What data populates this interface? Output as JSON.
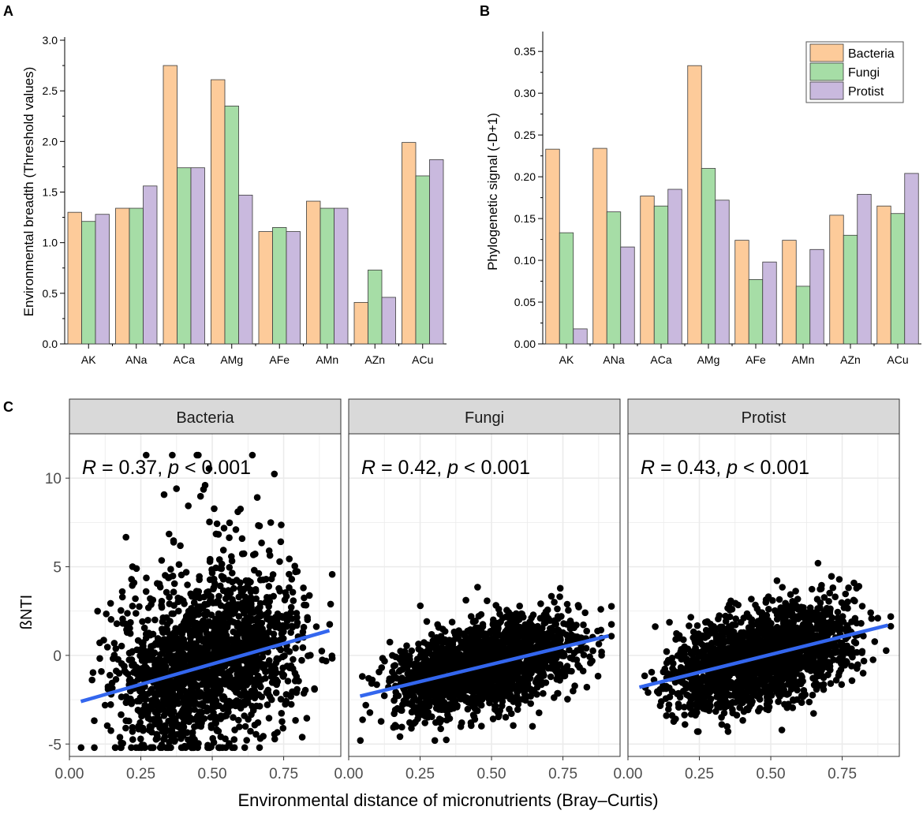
{
  "colors": {
    "bacteria": "#FDCB9A",
    "fungi": "#A6DDA6",
    "protist": "#C9B9DE",
    "bar_stroke": "#3a3a3a",
    "fit_line": "#3366EE",
    "facet_strip": "#D9D9D9",
    "grid": "#EBEBEB",
    "points": "#000000"
  },
  "chart_data": [
    {
      "panel_label": "A",
      "type": "bar",
      "title": "",
      "xlabel": "",
      "ylabel": "Environmental breadth (Threshold values)",
      "categories": [
        "AK",
        "ANa",
        "ACa",
        "AMg",
        "AFe",
        "AMn",
        "AZn",
        "ACu"
      ],
      "ylim": [
        0,
        3.0
      ],
      "yticks": [
        "0.0",
        "0.5",
        "1.0",
        "1.5",
        "2.0",
        "2.5",
        "3.0"
      ],
      "series": [
        {
          "name": "Bacteria",
          "values": [
            1.3,
            1.34,
            2.75,
            2.61,
            1.11,
            1.41,
            0.41,
            1.99
          ]
        },
        {
          "name": "Fungi",
          "values": [
            1.21,
            1.34,
            1.74,
            2.35,
            1.15,
            1.34,
            0.73,
            1.66
          ]
        },
        {
          "name": "Protist",
          "values": [
            1.28,
            1.56,
            1.74,
            1.47,
            1.11,
            1.34,
            0.46,
            1.82
          ]
        }
      ]
    },
    {
      "panel_label": "B",
      "type": "bar",
      "title": "",
      "xlabel": "",
      "ylabel": "Phylogenetic signal (-D+1)",
      "categories": [
        "AK",
        "ANa",
        "ACa",
        "AMg",
        "AFe",
        "AMn",
        "AZn",
        "ACu"
      ],
      "ylim": [
        0,
        0.37
      ],
      "yticks": [
        "0.00",
        "0.05",
        "0.10",
        "0.15",
        "0.20",
        "0.25",
        "0.30",
        "0.35"
      ],
      "legend": [
        "Bacteria",
        "Fungi",
        "Protist"
      ],
      "legend_position": "top-right",
      "series": [
        {
          "name": "Bacteria",
          "values": [
            0.233,
            0.234,
            0.177,
            0.333,
            0.124,
            0.124,
            0.154,
            0.165
          ]
        },
        {
          "name": "Fungi",
          "values": [
            0.133,
            0.158,
            0.165,
            0.21,
            0.077,
            0.069,
            0.13,
            0.156
          ]
        },
        {
          "name": "Protist",
          "values": [
            0.018,
            0.116,
            0.185,
            0.172,
            0.098,
            0.113,
            0.179,
            0.204
          ]
        }
      ]
    },
    {
      "panel_label": "C",
      "type": "scatter",
      "title": "",
      "xlabel": "Environmental distance of micronutrients (Bray–Curtis)",
      "ylabel": "ßNTI",
      "xlim": [
        0,
        0.95
      ],
      "ylim": [
        -5.7,
        12.5
      ],
      "xticks": [
        "0.00",
        "0.25",
        "0.50",
        "0.75"
      ],
      "yticks": [
        "-5",
        "0",
        "5",
        "10"
      ],
      "facets": [
        {
          "name": "Bacteria",
          "annotation": {
            "R": "0.37",
            "p": "< 0.001"
          },
          "fit": {
            "x": [
              0.04,
              0.91
            ],
            "y": [
              -2.6,
              1.4
            ]
          },
          "cloud": {
            "x_range": [
              0.04,
              0.92
            ],
            "y_sd": 2.3,
            "y_min": -5.2,
            "y_max": 11.3,
            "n": 1800
          }
        },
        {
          "name": "Fungi",
          "annotation": {
            "R": "0.42",
            "p": "< 0.001"
          },
          "fit": {
            "x": [
              0.04,
              0.91
            ],
            "y": [
              -2.3,
              1.1
            ]
          },
          "cloud": {
            "x_range": [
              0.04,
              0.92
            ],
            "y_sd": 1.2,
            "y_min": -4.8,
            "y_max": 4.5,
            "n": 1800
          }
        },
        {
          "name": "Protist",
          "annotation": {
            "R": "0.43",
            "p": "< 0.001"
          },
          "fit": {
            "x": [
              0.04,
              0.91
            ],
            "y": [
              -1.8,
              1.7
            ]
          },
          "cloud": {
            "x_range": [
              0.04,
              0.92
            ],
            "y_sd": 1.3,
            "y_min": -4.3,
            "y_max": 5.2,
            "n": 1800
          }
        }
      ]
    }
  ]
}
